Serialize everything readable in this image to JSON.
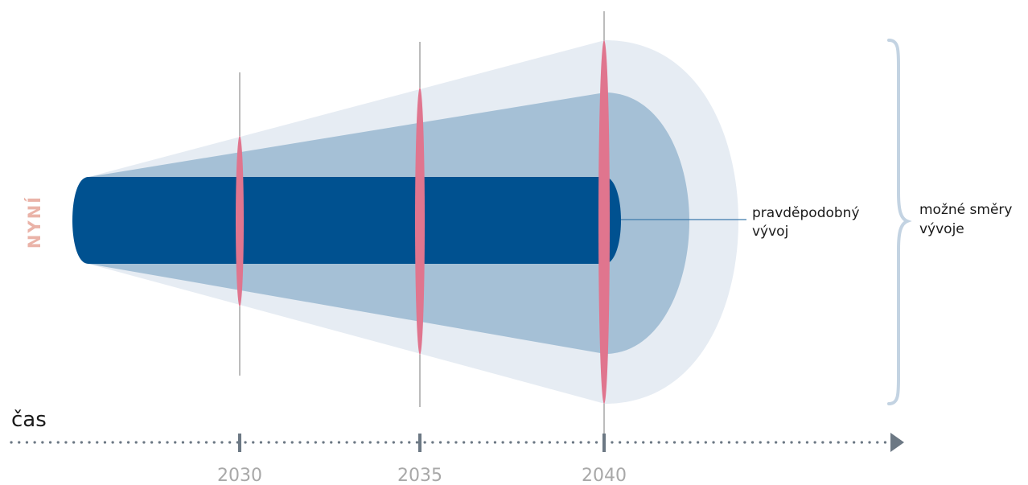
{
  "labels": {
    "now": "NYNÍ",
    "time": "čas",
    "likely_line1": "pravděpodobný",
    "likely_line2": "vývoj",
    "possible_line1": "možné směry",
    "possible_line2": "vývoje"
  },
  "timeline": {
    "years": [
      "2030",
      "2035",
      "2040"
    ]
  },
  "colors": {
    "outer_cone": "#e6ecf3",
    "middle_cone": "#a5c0d6",
    "core_bar": "#005190",
    "marker": "#e0758e",
    "marker_line": "#7a7a7a",
    "axis": "#6c7884",
    "brace": "#c3d3e2",
    "now_label": "#eab3a8"
  }
}
